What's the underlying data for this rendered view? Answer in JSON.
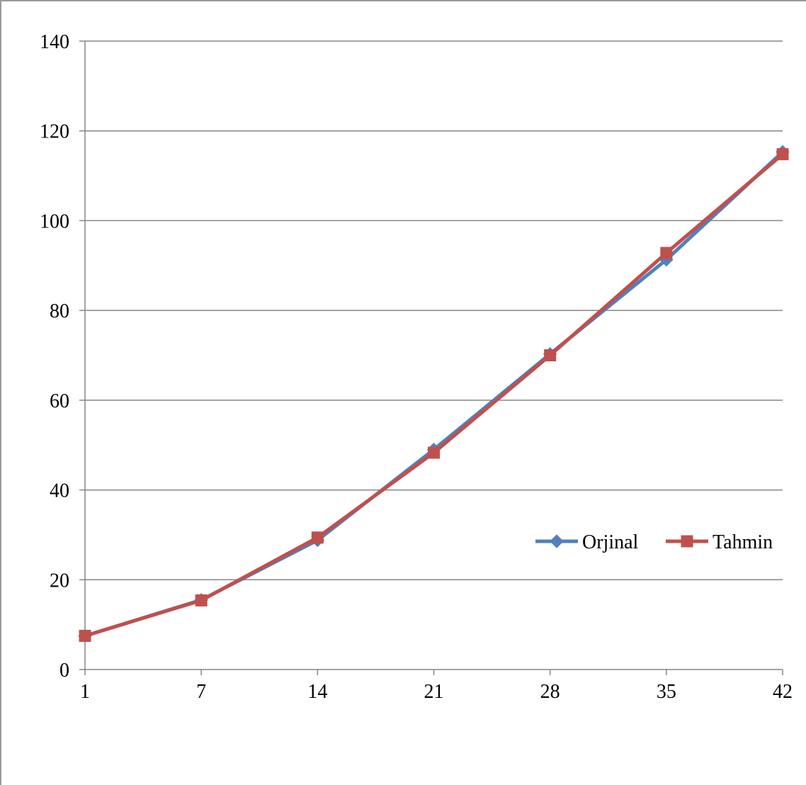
{
  "chart_data": {
    "type": "line",
    "categories": [
      "1",
      "7",
      "14",
      "21",
      "28",
      "35",
      "42"
    ],
    "series": [
      {
        "name": "Orjinal",
        "color": "#4F81BD",
        "marker": "diamond",
        "values": [
          7.5,
          15.5,
          28.8,
          49.0,
          70.3,
          91.3,
          115.3
        ]
      },
      {
        "name": "Tahmin",
        "color": "#C0504D",
        "marker": "square",
        "values": [
          7.5,
          15.4,
          29.4,
          48.3,
          70.0,
          92.8,
          114.8
        ]
      }
    ],
    "ylim": [
      0,
      140
    ],
    "yticks": [
      0,
      20,
      40,
      60,
      80,
      100,
      120,
      140
    ],
    "grid": true,
    "legend_position": "right",
    "gridline_color": "#868686",
    "axis_color": "#868686"
  }
}
